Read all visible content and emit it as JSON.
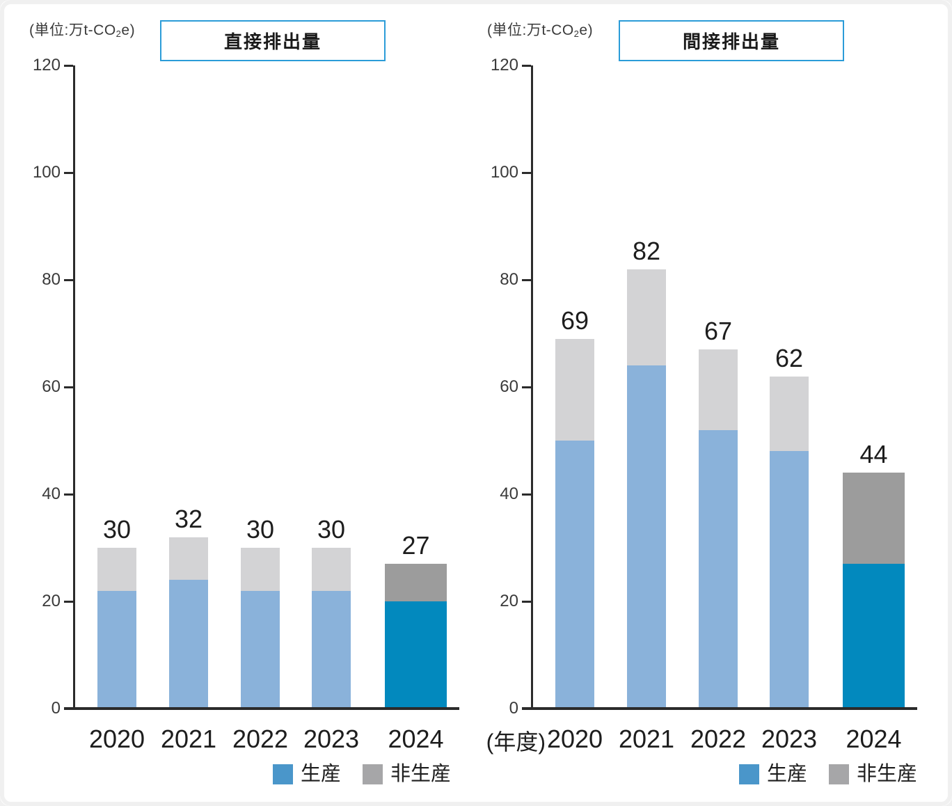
{
  "page": {
    "background": "#ffffff",
    "frame_color": "#f0f0f0"
  },
  "colors": {
    "production_normal": "#8AB2DA",
    "nonproduction_normal": "#D3D3D5",
    "production_highlight": "#0289BE",
    "nonproduction_highlight": "#9C9C9C",
    "legend_production": "#4A96CA",
    "legend_nonproduction": "#A6A6A8",
    "title_border": "#2B9CD8",
    "axis": "#2B2B2B",
    "text": "#1D1D1D"
  },
  "chart_data": [
    {
      "type": "bar",
      "stacked": true,
      "title": "直接排出量",
      "unit": {
        "prefix": "(単位:万t-CO",
        "sub": "2",
        "suffix": "e)"
      },
      "categories": [
        "2020",
        "2021",
        "2022",
        "2023",
        "2024"
      ],
      "series": [
        {
          "name": "生産",
          "values": [
            22,
            24,
            22,
            22,
            20
          ]
        },
        {
          "name": "非生産",
          "values": [
            8,
            8,
            8,
            8,
            7
          ]
        }
      ],
      "totals": [
        30,
        32,
        30,
        30,
        27
      ],
      "ylim": [
        0,
        120
      ],
      "yticks": [
        120,
        100,
        80,
        60,
        40,
        20,
        0
      ],
      "highlight_category": "2024",
      "legend": [
        "生産",
        "非生産"
      ],
      "legend_position": "bottom-right",
      "grid": false
    },
    {
      "type": "bar",
      "stacked": true,
      "title": "間接排出量",
      "unit": {
        "prefix": "(単位:万t-CO",
        "sub": "2",
        "suffix": "e)"
      },
      "x_axis_prefix": "(年度)",
      "categories": [
        "2020",
        "2021",
        "2022",
        "2023",
        "2024"
      ],
      "series": [
        {
          "name": "生産",
          "values": [
            50,
            64,
            52,
            48,
            27
          ]
        },
        {
          "name": "非生産",
          "values": [
            19,
            18,
            15,
            14,
            17
          ]
        }
      ],
      "totals": [
        69,
        82,
        67,
        62,
        44
      ],
      "ylim": [
        0,
        120
      ],
      "yticks": [
        120,
        100,
        80,
        60,
        40,
        20,
        0
      ],
      "highlight_category": "2024",
      "legend": [
        "生産",
        "非生産"
      ],
      "legend_position": "bottom-right",
      "grid": false
    }
  ]
}
